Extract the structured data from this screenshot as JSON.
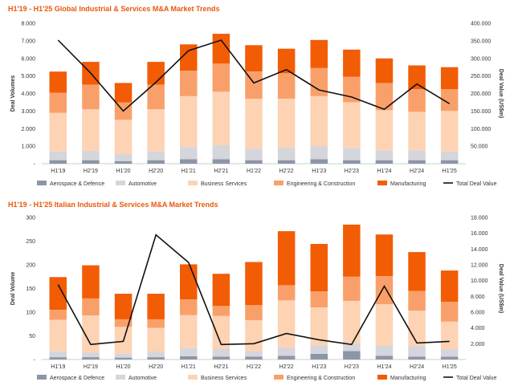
{
  "colors": {
    "aerospace": "#8c96a8",
    "automotive": "#d4d6db",
    "business": "#fdd3b4",
    "engineering": "#f9a06a",
    "manufacturing": "#f25c05",
    "total": "#111111",
    "title": "#e8580c"
  },
  "legend_labels": [
    "Aerospace & Defence",
    "Automotive",
    "Business Services",
    "Engineering & Construction",
    "Manufacturing",
    "Total Deal Value"
  ],
  "chart_data": [
    {
      "type": "bar",
      "stacked": true,
      "title": "H1'19 - H1'25  Global Industrial & Services M&A Market Trends",
      "ylabel": "Deal Volumes",
      "y2label": "Deal Value (US$m)",
      "categories": [
        "H1'19",
        "H2'19",
        "H1'20",
        "H2'20",
        "H1'21",
        "H2'21",
        "H1'22",
        "H2'22",
        "H1'23",
        "H2'23",
        "H1'24",
        "H2'24",
        "H1'25"
      ],
      "ylim": [
        0,
        8000
      ],
      "yticks": [
        "-",
        "1.000",
        "2.000",
        "3.000",
        "4.000",
        "5.000",
        "6.000",
        "7.000",
        "8.000"
      ],
      "y2lim": [
        0,
        400000
      ],
      "y2ticks": [
        "",
        "50.000",
        "100.000",
        "150.000",
        "200.000",
        "250.000",
        "300.000",
        "350.000",
        "400.000"
      ],
      "legend_position": "bottom",
      "series": [
        {
          "name": "Aerospace & Defence",
          "values": [
            200,
            200,
            150,
            200,
            250,
            250,
            200,
            200,
            250,
            200,
            200,
            200,
            200
          ]
        },
        {
          "name": "Automotive",
          "values": [
            500,
            550,
            400,
            500,
            700,
            800,
            650,
            700,
            750,
            700,
            550,
            550,
            500
          ]
        },
        {
          "name": "Business Services",
          "values": [
            2200,
            2350,
            1950,
            2400,
            2900,
            3050,
            2850,
            2800,
            2850,
            2600,
            2300,
            2200,
            2300
          ]
        },
        {
          "name": "Engineering & Construction",
          "values": [
            1150,
            1400,
            1000,
            1400,
            1450,
            1600,
            1550,
            1450,
            1600,
            1450,
            1550,
            1300,
            1250
          ]
        },
        {
          "name": "Manufacturing",
          "values": [
            1200,
            1300,
            1100,
            1300,
            1500,
            1700,
            1500,
            1400,
            1600,
            1550,
            1400,
            1350,
            1250
          ]
        }
      ],
      "line": {
        "name": "Total Deal Value",
        "values": [
          352000,
          258000,
          150000,
          232000,
          322000,
          352000,
          230000,
          268000,
          210000,
          190000,
          155000,
          227000,
          171000
        ]
      }
    },
    {
      "type": "bar",
      "stacked": true,
      "title": "H1'19 - H1'25  Italian Industrial & Services M&A Market Trends",
      "ylabel": "Deal Volume",
      "y2label": "Deal Value (US$m)",
      "categories": [
        "H1'19",
        "H2'19",
        "H1'20",
        "H2'20",
        "H1'21",
        "H2'21",
        "H1'22",
        "H2'22",
        "H1'23",
        "H2'23",
        "H1'24",
        "H2'24",
        "H1'25"
      ],
      "ylim": [
        0,
        300
      ],
      "yticks": [
        "-",
        "50",
        "100",
        "150",
        "200",
        "250",
        "300"
      ],
      "y2lim": [
        0,
        18000
      ],
      "y2ticks": [
        "",
        "2.000",
        "4.000",
        "6.000",
        "8.000",
        "10.000",
        "12.000",
        "14.000",
        "16.000",
        "18.000"
      ],
      "legend_position": "bottom",
      "series": [
        {
          "name": "Aerospace & Defence",
          "values": [
            5,
            5,
            4,
            5,
            7,
            6,
            6,
            8,
            12,
            18,
            8,
            6,
            6
          ]
        },
        {
          "name": "Automotive",
          "values": [
            12,
            10,
            8,
            12,
            17,
            16,
            12,
            17,
            18,
            16,
            22,
            22,
            16
          ]
        },
        {
          "name": "Business Services",
          "values": [
            67,
            78,
            57,
            50,
            70,
            70,
            65,
            100,
            80,
            90,
            87,
            75,
            58
          ]
        },
        {
          "name": "Engineering & Construction",
          "values": [
            21,
            36,
            16,
            18,
            33,
            21,
            32,
            32,
            34,
            51,
            59,
            42,
            42
          ]
        },
        {
          "name": "Manufacturing",
          "values": [
            69,
            70,
            54,
            54,
            74,
            68,
            91,
            114,
            100,
            110,
            88,
            82,
            66
          ]
        }
      ],
      "line": {
        "name": "Total Deal Value",
        "values": [
          9500,
          1900,
          2300,
          15800,
          12300,
          1900,
          2000,
          3300,
          2500,
          1900,
          9300,
          2100,
          2300
        ]
      }
    }
  ]
}
